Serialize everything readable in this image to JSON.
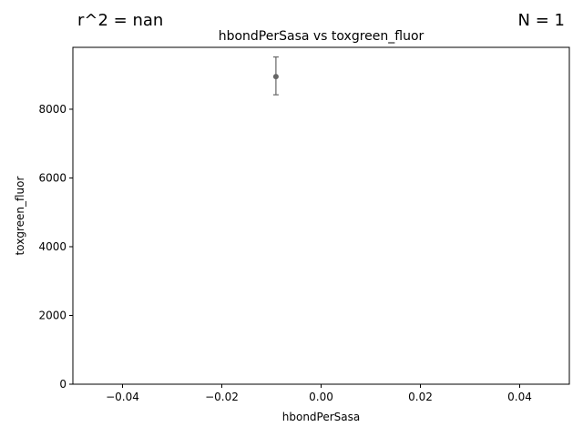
{
  "header": {
    "r2_text": "r^2 = nan",
    "n_text": "N = 1"
  },
  "chart_data": {
    "type": "scatter",
    "title": "hbondPerSasa vs toxgreen_fluor",
    "xlabel": "hbondPerSasa",
    "ylabel": "toxgreen_fluor",
    "xlim": [
      -0.05,
      0.05
    ],
    "ylim": [
      0,
      9800
    ],
    "x_ticks": [
      -0.04,
      -0.02,
      0.0,
      0.02,
      0.04
    ],
    "x_tick_labels": [
      "−0.04",
      "−0.02",
      "0.00",
      "0.02",
      "0.04"
    ],
    "y_ticks": [
      0,
      2000,
      4000,
      6000,
      8000
    ],
    "y_tick_labels": [
      "0",
      "2000",
      "4000",
      "6000",
      "8000"
    ],
    "grid": false,
    "points": [
      {
        "x": -0.0091,
        "y": 8950,
        "err_low": 8420,
        "err_high": 9520
      }
    ],
    "marker_color": "#666666"
  }
}
